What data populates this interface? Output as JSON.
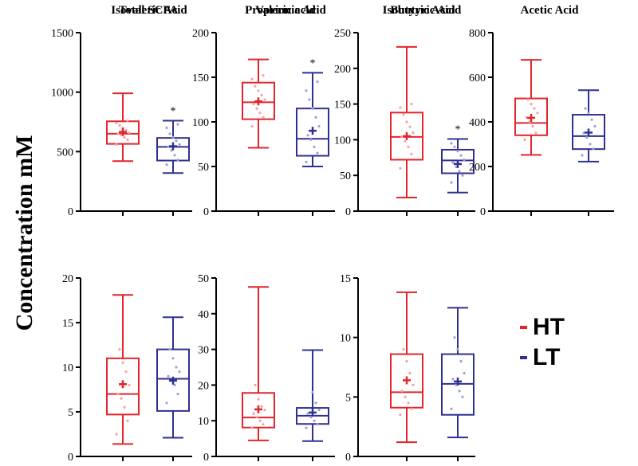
{
  "figure": {
    "ylabel": "Concentration mM",
    "legend": [
      {
        "label": "HT",
        "color": "#e3242b"
      },
      {
        "label": "LT",
        "color": "#2e3192"
      }
    ]
  },
  "chart_data": [
    {
      "type": "box",
      "title": "Total SCFA",
      "ylim": [
        0,
        1500
      ],
      "yticks": [
        0,
        500,
        1000,
        1500
      ],
      "significance": "*",
      "series": [
        {
          "name": "HT",
          "min": 420,
          "q1": 565,
          "median": 650,
          "q3": 755,
          "max": 990,
          "mean": 665,
          "points": [
            560,
            600,
            620,
            640,
            650,
            660,
            680,
            700,
            720,
            740,
            760
          ]
        },
        {
          "name": "LT",
          "min": 320,
          "q1": 425,
          "median": 540,
          "q3": 615,
          "max": 760,
          "mean": 545,
          "points": [
            390,
            430,
            470,
            510,
            540,
            560,
            590,
            620,
            650,
            700,
            730
          ]
        }
      ]
    },
    {
      "type": "box",
      "title": "Proprionic Acid",
      "ylim": [
        0,
        200
      ],
      "yticks": [
        0,
        50,
        100,
        150,
        200
      ],
      "significance": "*",
      "series": [
        {
          "name": "HT",
          "min": 71,
          "q1": 103,
          "median": 122,
          "q3": 144,
          "max": 170,
          "mean": 123,
          "points": [
            95,
            105,
            110,
            115,
            120,
            125,
            130,
            135,
            140,
            148,
            152
          ]
        },
        {
          "name": "LT",
          "min": 50,
          "q1": 62,
          "median": 81,
          "q3": 115,
          "max": 155,
          "mean": 90,
          "points": [
            55,
            65,
            72,
            80,
            85,
            95,
            105,
            115,
            125,
            135,
            145
          ]
        }
      ]
    },
    {
      "type": "box",
      "title": "Butyric Acid",
      "ylim": [
        0,
        250
      ],
      "yticks": [
        0,
        50,
        100,
        150,
        200,
        250
      ],
      "significance": "*",
      "series": [
        {
          "name": "HT",
          "min": 19,
          "q1": 72,
          "median": 104,
          "q3": 138,
          "max": 230,
          "mean": 105,
          "points": [
            60,
            80,
            90,
            98,
            104,
            110,
            118,
            125,
            135,
            145,
            150
          ]
        },
        {
          "name": "LT",
          "min": 26,
          "q1": 53,
          "median": 71,
          "q3": 86,
          "max": 101,
          "mean": 66,
          "points": [
            40,
            50,
            56,
            62,
            68,
            72,
            78,
            84,
            90,
            95
          ]
        }
      ]
    },
    {
      "type": "box",
      "title": "Acetic Acid",
      "ylim": [
        0,
        800
      ],
      "yticks": [
        0,
        200,
        400,
        600,
        800
      ],
      "significance": "",
      "series": [
        {
          "name": "HT",
          "min": 252,
          "q1": 340,
          "median": 395,
          "q3": 505,
          "max": 678,
          "mean": 418,
          "points": [
            320,
            350,
            380,
            400,
            420,
            440,
            460,
            480,
            500
          ]
        },
        {
          "name": "LT",
          "min": 222,
          "q1": 278,
          "median": 336,
          "q3": 432,
          "max": 542,
          "mean": 352,
          "points": [
            250,
            280,
            300,
            330,
            350,
            380,
            410,
            440,
            460
          ]
        }
      ]
    },
    {
      "type": "box",
      "title": "Isovaleric Acid",
      "ylim": [
        0,
        20
      ],
      "yticks": [
        0,
        5,
        10,
        15,
        20
      ],
      "significance": "",
      "series": [
        {
          "name": "HT",
          "min": 1.4,
          "q1": 4.7,
          "median": 7.0,
          "q3": 11.0,
          "max": 18.1,
          "mean": 8.1,
          "points": [
            2.5,
            4.0,
            5.5,
            6.5,
            7.0,
            8.0,
            9.5,
            10.5,
            12.0
          ]
        },
        {
          "name": "LT",
          "min": 2.1,
          "q1": 5.1,
          "median": 8.7,
          "q3": 12.0,
          "max": 15.6,
          "mean": 8.5,
          "points": [
            6.0,
            7.0,
            8.0,
            8.5,
            9.0,
            9.5,
            10.0,
            11.0,
            12.0
          ]
        }
      ]
    },
    {
      "type": "box",
      "title": "Valeric acid",
      "ylim": [
        0,
        50
      ],
      "yticks": [
        0,
        10,
        20,
        30,
        40,
        50
      ],
      "significance": "",
      "series": [
        {
          "name": "HT",
          "min": 4.5,
          "q1": 8.1,
          "median": 10.9,
          "q3": 17.8,
          "max": 47.5,
          "mean": 13.2,
          "points": [
            8,
            9,
            10,
            11,
            12,
            13,
            14,
            16,
            20
          ]
        },
        {
          "name": "LT",
          "min": 4.3,
          "q1": 9.1,
          "median": 11.4,
          "q3": 13.6,
          "max": 29.8,
          "mean": 12.3,
          "points": [
            8,
            9,
            10,
            11,
            12,
            13,
            15,
            18
          ]
        }
      ]
    },
    {
      "type": "box",
      "title": "Isobutyric Acid",
      "ylim": [
        0,
        15
      ],
      "yticks": [
        0,
        5,
        10,
        15
      ],
      "significance": "",
      "series": [
        {
          "name": "HT",
          "min": 1.2,
          "q1": 4.1,
          "median": 5.4,
          "q3": 8.6,
          "max": 13.8,
          "mean": 6.4,
          "points": [
            3.5,
            4.0,
            4.5,
            5.0,
            5.5,
            6.0,
            7.0,
            8.0,
            9.0
          ]
        },
        {
          "name": "LT",
          "min": 1.6,
          "q1": 3.5,
          "median": 6.1,
          "q3": 8.6,
          "max": 12.5,
          "mean": 6.3,
          "points": [
            4.0,
            5.0,
            5.5,
            6.0,
            6.5,
            7.0,
            8.0,
            9.0,
            10.0
          ]
        }
      ]
    }
  ]
}
